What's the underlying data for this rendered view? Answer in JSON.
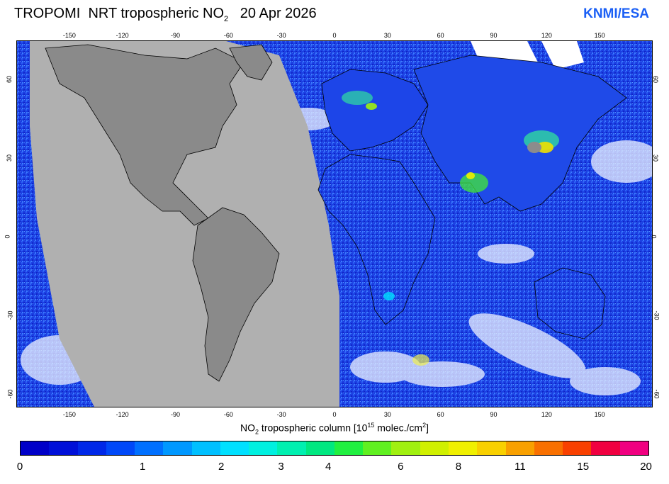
{
  "header": {
    "title_prefix": "TROPOMI  NRT tropospheric NO",
    "title_sub": "2",
    "title_date": "   20 Apr 2026",
    "brand": "KNMI/ESA"
  },
  "map": {
    "lon_ticks": [
      "-150",
      "-120",
      "-90",
      "-60",
      "-30",
      "0",
      "30",
      "60",
      "90",
      "120",
      "150"
    ],
    "lat_ticks": [
      "60",
      "30",
      "0",
      "-30",
      "-60"
    ],
    "colors": {
      "land_nodata": "#8c8c8c",
      "swath_gap": "#b0b0b0",
      "ocean_low": "#1a3de0",
      "coast": "#000000"
    }
  },
  "colorbar": {
    "label_prefix": "NO",
    "label_sub": "2",
    "label_mid": " tropospheric column [10",
    "label_sup1": "15",
    "label_mid2": " molec./cm",
    "label_sup2": "2",
    "label_end": "]",
    "tick_labels": [
      "0",
      "1",
      "2",
      "3",
      "4",
      "6",
      "8",
      "11",
      "15",
      "20"
    ],
    "segments": [
      "#0000c8",
      "#0010d8",
      "#0028e8",
      "#0048f8",
      "#0070ff",
      "#0098ff",
      "#00c0ff",
      "#00e0ff",
      "#00f0e0",
      "#00f0b0",
      "#00e880",
      "#20f040",
      "#60f020",
      "#a0f010",
      "#d0f000",
      "#f0f000",
      "#f8d000",
      "#f8a000",
      "#f87000",
      "#f84000",
      "#f00040",
      "#f00080"
    ]
  }
}
